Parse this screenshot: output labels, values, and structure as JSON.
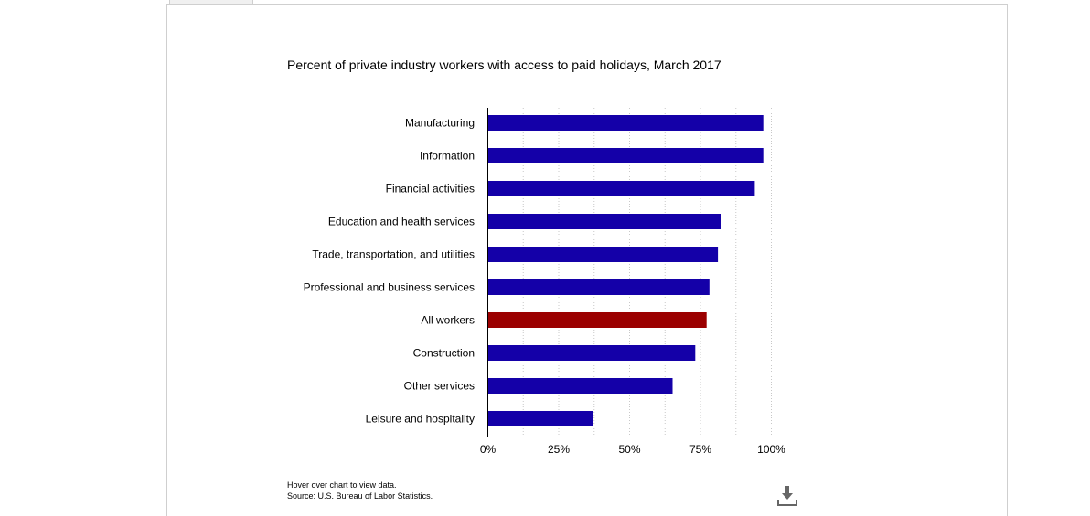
{
  "chart_data": {
    "type": "bar",
    "orientation": "horizontal",
    "title": "Percent of private industry workers with access to paid holidays, March 2017",
    "categories": [
      "Manufacturing",
      "Information",
      "Financial activities",
      "Education and health services",
      "Trade, transportation, and utilities",
      "Professional and business services",
      "All workers",
      "Construction",
      "Other services",
      "Leisure and hospitality"
    ],
    "values": [
      97,
      97,
      94,
      82,
      81,
      78,
      77,
      73,
      65,
      37
    ],
    "xlim": [
      0,
      100
    ],
    "xticks": [
      "0%",
      "25%",
      "50%",
      "75%",
      "100%"
    ],
    "grid": "vertical dotted",
    "bar_color": "#1400a8",
    "highlight_color": "#9b0000",
    "highlight_category": "All workers"
  },
  "footer": {
    "hover_note": "Hover over chart to view data.",
    "source": "Source: U.S. Bureau of Labor Statistics."
  },
  "icons": {
    "download": "download-icon"
  }
}
